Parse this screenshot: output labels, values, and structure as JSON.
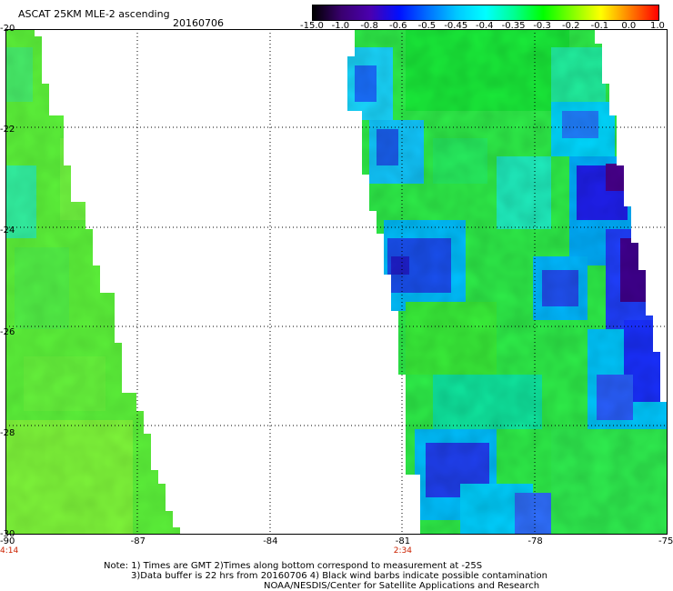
{
  "header": {
    "title": "ASCAT 25KM MLE-2 ascending",
    "date": "20160706"
  },
  "colorbar": {
    "labels": [
      "-15.0",
      "-1.0",
      "-0.8",
      "-0.6",
      "-0.5",
      "-0.45",
      "-0.4",
      "-0.35",
      "-0.3",
      "-0.2",
      "-0.1",
      "0.0",
      "1.0"
    ],
    "colors": [
      "#000000",
      "#3a0070",
      "#4a00b0",
      "#0010ff",
      "#0070ff",
      "#00c8ff",
      "#00ffff",
      "#00ff90",
      "#00ff00",
      "#80ff00",
      "#ffff00",
      "#ff8000",
      "#ff0000"
    ]
  },
  "map": {
    "lon_ticks": [
      "-90",
      "-87",
      "-84",
      "-81",
      "-78",
      "-75"
    ],
    "lat_ticks": [
      "-20",
      "-22",
      "-24",
      "-26",
      "-28",
      "-30"
    ],
    "lon_range": [
      -90,
      -75
    ],
    "lat_range": [
      -20,
      -30
    ],
    "time_labels": [
      {
        "text": "4:14",
        "lon": -90
      },
      {
        "text": "2:34",
        "lon": -81
      }
    ]
  },
  "notes": {
    "line1": "Note: 1) Times are GMT 2)Times along bottom correspond to measurement at -25S",
    "line2": "3)Data buffer is 22 hrs from 20160706 4) Black wind barbs indicate possible contamination",
    "line3": "NOAA/NESDIS/Center for Satellite Applications and Research"
  }
}
